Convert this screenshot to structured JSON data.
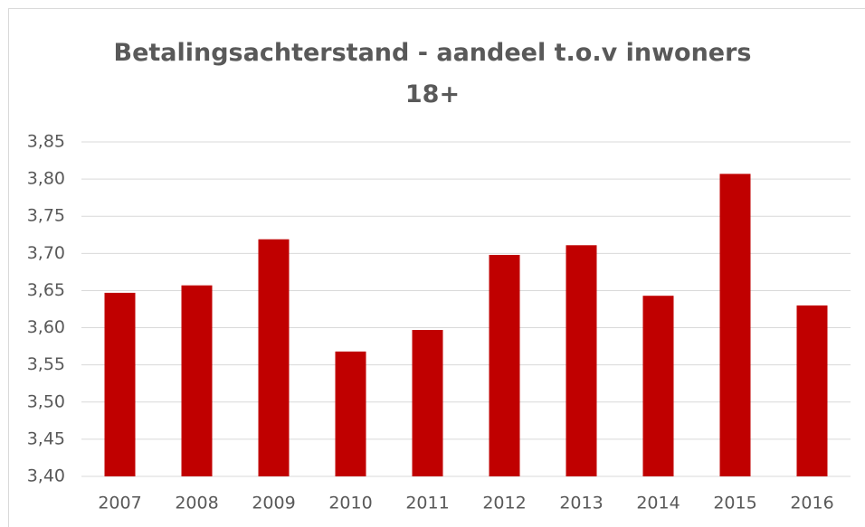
{
  "chart_data": {
    "type": "bar",
    "title": "Betalingsachterstand - aandeel t.o.v inwoners 18+",
    "categories": [
      "2007",
      "2008",
      "2009",
      "2010",
      "2011",
      "2012",
      "2013",
      "2014",
      "2015",
      "2016"
    ],
    "values": [
      3.647,
      3.657,
      3.719,
      3.568,
      3.597,
      3.698,
      3.711,
      3.643,
      3.807,
      3.63
    ],
    "color": "#c00000",
    "ylim": [
      3.4,
      3.85
    ],
    "yticks": [
      {
        "value": 3.4,
        "label": "3,40"
      },
      {
        "value": 3.45,
        "label": "3,45"
      },
      {
        "value": 3.5,
        "label": "3,50"
      },
      {
        "value": 3.55,
        "label": "3,55"
      },
      {
        "value": 3.6,
        "label": "3,60"
      },
      {
        "value": 3.65,
        "label": "3,65"
      },
      {
        "value": 3.7,
        "label": "3,70"
      },
      {
        "value": 3.75,
        "label": "3,75"
      },
      {
        "value": 3.8,
        "label": "3,80"
      },
      {
        "value": 3.85,
        "label": "3,85"
      }
    ],
    "grid": true
  }
}
